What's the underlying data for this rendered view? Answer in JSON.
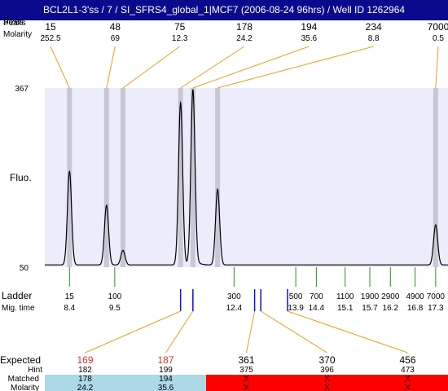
{
  "title": "BCL2L1-3'ss / 7 / SI_SFRS4_global_1|MCF7 (2006-08-24 96hrs) / Well ID 1262964",
  "labels": {
    "sizes_overlap": "Sizes",
    "peaks_overlap": "Peaks",
    "molarity": "Molarity",
    "fluo": "Fluo.",
    "y_max": "367",
    "y_min": "50",
    "ladder": "Ladder",
    "mig_time": "Mig. time",
    "expected": "Expected",
    "hint": "Hint",
    "matched": "Matched",
    "molarity_bottom": "Molarity"
  },
  "colors": {
    "title_bg": "#0a0a8c",
    "plot_bg": "#ececfa",
    "peak_band": "#c8c8d4",
    "connector": "#e8a020",
    "ladder_tick": "#2e8b2e",
    "marker": "#1010d0",
    "expected_highlight": "#e03030",
    "matched_ok": "#add8e6",
    "matched_fail": "#ff0000"
  },
  "chart_data": {
    "type": "line",
    "title": "BCL2L1-3'ss / 7 / SI_SFRS4_global_1|MCF7 (2006-08-24 96hrs) / Well ID 1262964",
    "xlabel": "Mig. time",
    "ylabel": "Fluo.",
    "ylim": [
      50,
      367
    ],
    "xlim": [
      7.8,
      17.6
    ],
    "grid": false,
    "peaks": [
      {
        "size": "15",
        "molarity": "252.5",
        "time": 8.4,
        "height": 220
      },
      {
        "size": "48",
        "molarity": "69",
        "time": 9.3,
        "height": 160
      },
      {
        "size": "75",
        "molarity": "12.3",
        "time": 9.7,
        "height": 80
      },
      {
        "size": "178",
        "molarity": "24.2",
        "time": 11.1,
        "height": 342
      },
      {
        "size": "194",
        "molarity": "35.6",
        "time": 11.4,
        "height": 365
      },
      {
        "size": "234",
        "molarity": "8.8",
        "time": 12.0,
        "height": 188
      },
      {
        "size": "7000",
        "molarity": "0.5",
        "time": 17.3,
        "height": 125
      }
    ],
    "ladder": [
      {
        "size": "15",
        "time": "8.4",
        "t": 8.4
      },
      {
        "size": "100",
        "time": "9.5",
        "t": 9.5
      },
      {
        "size": "300",
        "time": "12.4",
        "t": 12.4
      },
      {
        "size": "500",
        "time": "13.9",
        "t": 13.9
      },
      {
        "size": "700",
        "time": "14.4",
        "t": 14.4
      },
      {
        "size": "1100",
        "time": "15.1",
        "t": 15.1
      },
      {
        "size": "1900",
        "time": "15.7",
        "t": 15.7
      },
      {
        "size": "2900",
        "time": "16.2",
        "t": 16.2
      },
      {
        "size": "4900",
        "time": "16.8",
        "t": 16.8
      },
      {
        "size": "7000",
        "time": "17.3",
        "t": 17.3
      }
    ],
    "markers": [
      {
        "t": 11.1,
        "column": 0
      },
      {
        "t": 11.4,
        "column": 1
      },
      {
        "t": 12.9,
        "column": 2
      },
      {
        "t": 13.05,
        "column": 3
      },
      {
        "t": 13.7,
        "column": 4
      }
    ],
    "expected": [
      {
        "expected": "169",
        "hint": "182",
        "matched": "178",
        "molarity": "24.2",
        "status": "matched",
        "highlight": true
      },
      {
        "expected": "187",
        "hint": "199",
        "matched": "194",
        "molarity": "35.6",
        "status": "matched",
        "highlight": true
      },
      {
        "expected": "361",
        "hint": "375",
        "matched": "X",
        "molarity": "X",
        "status": "unmatched",
        "highlight": false
      },
      {
        "expected": "370",
        "hint": "396",
        "matched": "X",
        "molarity": "X",
        "status": "unmatched",
        "highlight": false
      },
      {
        "expected": "456",
        "hint": "473",
        "matched": "X",
        "molarity": "X",
        "status": "unmatched",
        "highlight": false
      }
    ]
  }
}
